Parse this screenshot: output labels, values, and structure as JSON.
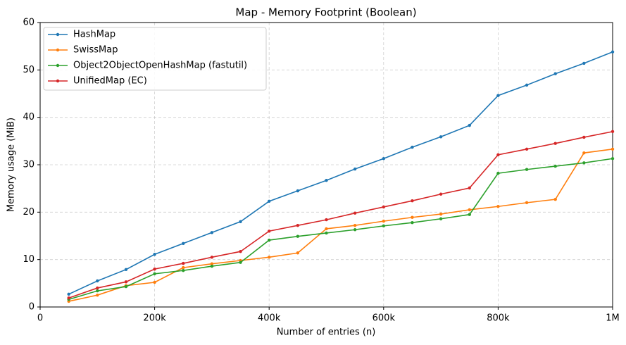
{
  "chart_data": {
    "type": "line",
    "title": "Map - Memory Footprint (Boolean)",
    "x_label": "Number of entries (n)",
    "y_label": "Memory usage (MiB)",
    "x": [
      50000,
      100000,
      150000,
      200000,
      250000,
      300000,
      350000,
      400000,
      450000,
      500000,
      550000,
      600000,
      650000,
      700000,
      750000,
      800000,
      850000,
      900000,
      950000,
      1000000
    ],
    "series": [
      {
        "name": "HashMap",
        "color": "#1f77b4",
        "values": [
          2.7,
          5.5,
          7.9,
          11.1,
          13.4,
          15.7,
          18.0,
          22.3,
          24.5,
          26.7,
          29.1,
          31.3,
          33.7,
          35.9,
          38.3,
          44.6,
          46.8,
          49.2,
          51.4,
          53.8
        ]
      },
      {
        "name": "SwissMap",
        "color": "#ff7f0e",
        "values": [
          1.2,
          2.5,
          4.5,
          5.2,
          8.3,
          9.1,
          9.8,
          10.5,
          11.4,
          16.5,
          17.2,
          18.1,
          18.9,
          19.6,
          20.5,
          21.2,
          22.0,
          22.7,
          32.5,
          33.3
        ]
      },
      {
        "name": "Object2ObjectOpenHashMap (fastutil)",
        "color": "#2ca02c",
        "values": [
          1.6,
          3.4,
          4.3,
          7.0,
          7.7,
          8.6,
          9.4,
          14.1,
          14.9,
          15.6,
          16.3,
          17.1,
          17.8,
          18.6,
          19.5,
          28.2,
          29.0,
          29.7,
          30.4,
          31.3
        ]
      },
      {
        "name": "UnifiedMap (EC)",
        "color": "#d62728",
        "values": [
          1.9,
          4.0,
          5.3,
          8.0,
          9.2,
          10.5,
          11.7,
          16.0,
          17.2,
          18.4,
          19.8,
          21.1,
          22.4,
          23.8,
          25.1,
          32.1,
          33.3,
          34.5,
          35.8,
          37.0
        ]
      }
    ],
    "xlim": [
      0,
      1000000
    ],
    "ylim": [
      0,
      60
    ],
    "xticks": [
      0,
      {
        "value": 200000,
        "label": "200k"
      },
      {
        "value": 400000,
        "label": "400k"
      },
      {
        "value": 600000,
        "label": "600k"
      },
      {
        "value": 800000,
        "label": "800k"
      },
      {
        "value": 1000000,
        "label": "1M"
      }
    ],
    "yticks": [
      0,
      10,
      20,
      30,
      40,
      50,
      60
    ],
    "grid": true,
    "legend": "upper-left"
  }
}
